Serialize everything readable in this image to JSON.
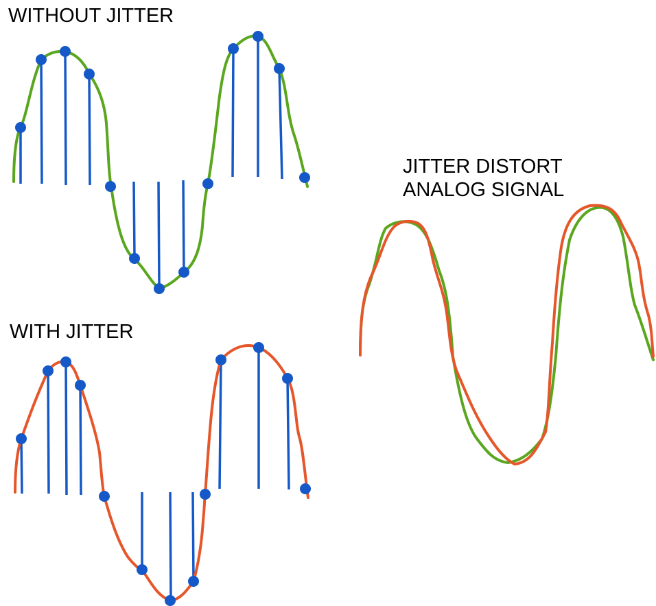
{
  "labels": {
    "without_jitter": "WITHOUT JITTER",
    "with_jitter": "WITH JITTER",
    "distort_line1": "JITTER DISTORT",
    "distort_line2": "ANALOG SIGNAL"
  },
  "colors": {
    "clean_signal": "#5aa61e",
    "jittered_signal": "#e5572a",
    "sample": "#1558c8",
    "text": "#000000"
  },
  "panels": [
    {
      "name": "without-jitter",
      "signal": "clean",
      "samples": 13,
      "sample_color": "sample"
    },
    {
      "name": "with-jitter",
      "signal": "jittered",
      "samples": 13,
      "sample_color": "sample"
    },
    {
      "name": "distortion-overlay",
      "signals": [
        "clean",
        "jittered"
      ]
    }
  ]
}
